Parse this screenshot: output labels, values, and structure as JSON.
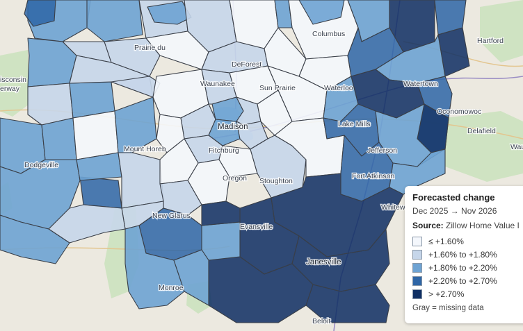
{
  "legend": {
    "title": "Forecasted change",
    "period": "Dec 2025 → Nov 2026",
    "source_label": "Source:",
    "source_value": "Zillow Home Value I",
    "items": [
      {
        "label": "≤ +1.60%",
        "color": "#f4f7fc"
      },
      {
        "label": "+1.60% to +1.80%",
        "color": "#c6d6ea"
      },
      {
        "label": "+1.80% to +2.20%",
        "color": "#6ea3d3"
      },
      {
        "label": "+2.20% to +2.70%",
        "color": "#2f66a6"
      },
      {
        "label": "> +2.70%",
        "color": "#0f2f63"
      }
    ],
    "missing_note": "Gray = missing data"
  },
  "map": {
    "base_color": "#ece9e0",
    "boundary_color": "#3a3f48",
    "labels": {
      "hartford": "Hartford",
      "columbus": "Columbus",
      "prairie": "Prairie du",
      "deforest": "DeForest",
      "waunakee": "Waunakee",
      "sunprairie": "Sun Prairie",
      "waterloo": "Waterloo",
      "watertown": "Watertown",
      "oconomowoc": "Oconomowoc",
      "delafield": "Delafield",
      "wau": "Wau",
      "lakemills": "Lake Mills",
      "madison": "Madison",
      "mounthoreb": "Mount Horeb",
      "fitchburg": "Fitchburg",
      "dodgeville": "Dodgeville",
      "jefferson": "Jefferson",
      "fortatkinson": "Fort Atkinson",
      "oregon": "Oregon",
      "stoughton": "Stoughton",
      "whitewater": "Whitew",
      "newglarus": "New Glarus",
      "evansville": "Evansville",
      "janesville": "Janesville",
      "monroe": "Monroe",
      "beloit": "Beloit",
      "wisconsin": "isconsin",
      "heritage": "erway"
    }
  }
}
